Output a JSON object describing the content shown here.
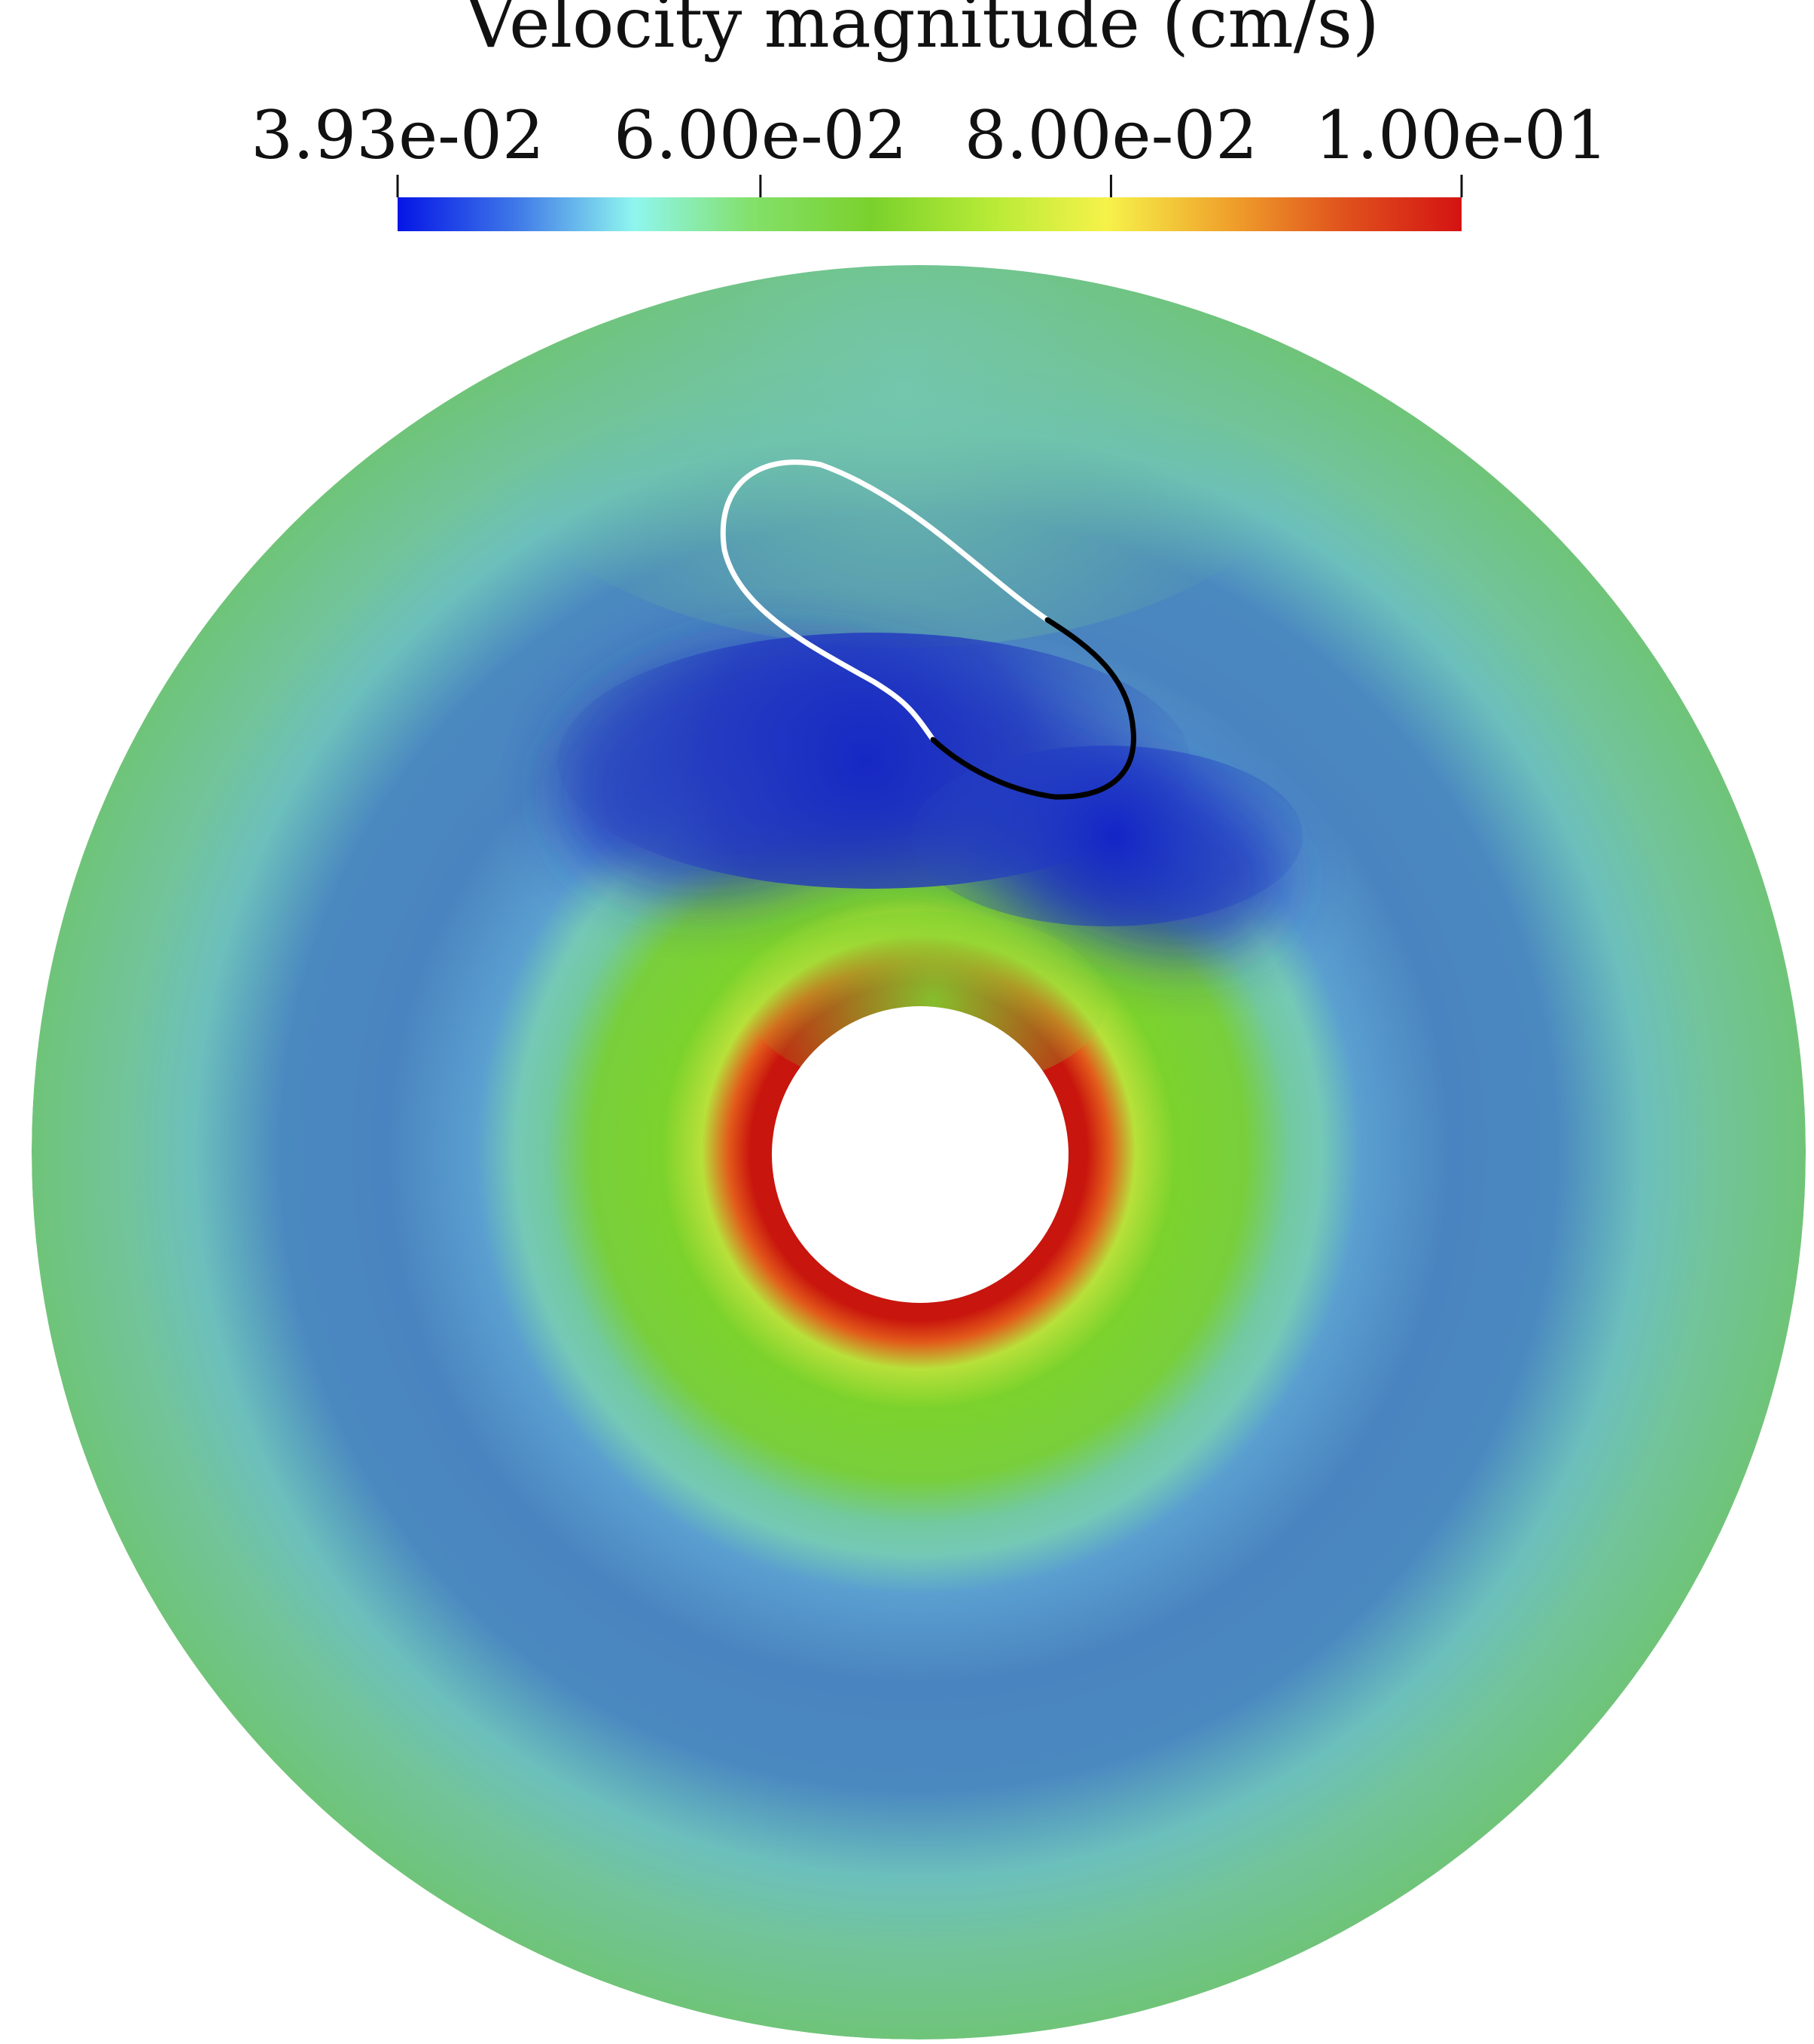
{
  "colorbar": {
    "title": "Velocity magnitude (cm/s)",
    "range": [
      0.0393,
      0.1
    ],
    "ticks": [
      {
        "label": "3.93e-02",
        "value": 0.0393
      },
      {
        "label": "6.00e-02",
        "value": 0.06
      },
      {
        "label": "8.00e-02",
        "value": 0.08
      },
      {
        "label": "1.00e-01",
        "value": 0.1
      }
    ],
    "colormap": [
      "#0515e6",
      "#3f78e8",
      "#8ff6ef",
      "#83e06a",
      "#7ad12c",
      "#b6ea36",
      "#f6f24a",
      "#f0a42c",
      "#e0521d",
      "#d41312"
    ]
  },
  "field": {
    "background_color": "#6fc47a",
    "low_velocity_color": "#1b2fc0",
    "mid_blue_color": "#4a86c2",
    "cyan_band_color": "#74c9b6",
    "green_ring_color": "#7cd22c",
    "high_velocity_color": "#c8150d",
    "inner_cylinder_fill": "#ffffff",
    "body_outline_colors": [
      "#ffffff",
      "#000000"
    ]
  }
}
